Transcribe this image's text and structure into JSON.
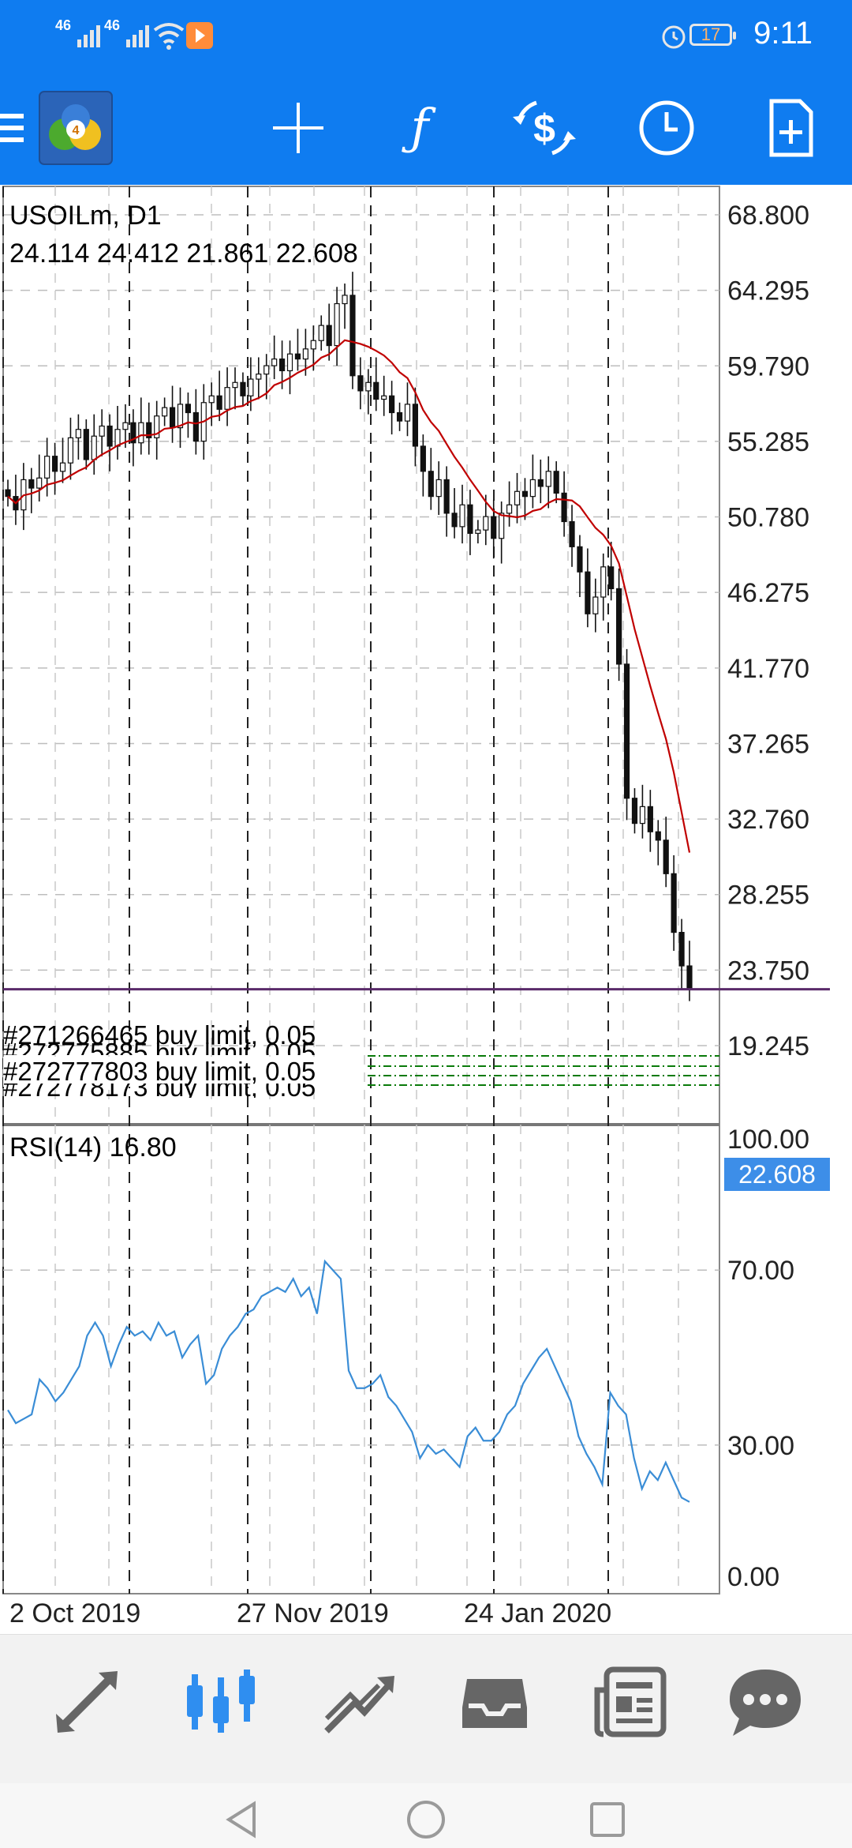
{
  "status_bar": {
    "signal1": "46",
    "signal2": "46",
    "battery": "17",
    "time": "9:11"
  },
  "toolbar": {
    "icons": [
      "menu-icon",
      "app-logo",
      "crosshair-icon",
      "function-icon",
      "trade-icon",
      "clock-icon",
      "new-order-icon"
    ]
  },
  "chart": {
    "symbol_label": "USOILm, D1",
    "ohlc_label": "24.114 24.412 21.861 22.608",
    "current_price": "22.608",
    "price_axis": [
      "68.800",
      "64.295",
      "59.790",
      "55.285",
      "50.780",
      "46.275",
      "41.770",
      "37.265",
      "32.760",
      "28.255",
      "23.750",
      "19.245"
    ],
    "date_axis": [
      "2 Oct 2019",
      "27 Nov 2019",
      "24 Jan 2020"
    ],
    "orders": [
      "#271266465 buy limit, 0.05",
      "#272775885 buy limit, 0.05",
      "#272777803 buy limit, 0.05",
      "#272778173 buy limit, 0.05"
    ],
    "rsi_label": "RSI(14) 16.80",
    "rsi_axis": [
      "100.00",
      "70.00",
      "30.00",
      "0.00"
    ],
    "colors": {
      "ma_line": "#c00000",
      "rsi_line": "#3a8dd6",
      "price_line": "#5a2a6a",
      "price_tag": "#3d8ee8",
      "order_lines": "#0a7a0a"
    }
  },
  "chart_data": {
    "type": "candlestick",
    "symbol": "USOILm",
    "timeframe": "D1",
    "ylim": [
      17.0,
      69.0
    ],
    "x_labels": [
      "2 Oct 2019",
      "27 Nov 2019",
      "24 Jan 2020"
    ],
    "close_series": [
      52.0,
      51.2,
      53.0,
      52.5,
      53.1,
      54.4,
      53.5,
      54.0,
      55.5,
      56.0,
      54.2,
      55.6,
      56.2,
      55.0,
      56.0,
      56.4,
      55.2,
      56.4,
      55.5,
      56.8,
      57.3,
      56.1,
      57.5,
      57.0,
      55.3,
      57.6,
      58.0,
      57.2,
      58.5,
      58.8,
      58.0,
      59.0,
      59.3,
      59.8,
      60.2,
      59.5,
      60.5,
      60.2,
      60.8,
      61.3,
      62.2,
      61.0,
      63.5,
      64.0,
      59.2,
      58.3,
      58.8,
      57.8,
      58.0,
      57.0,
      56.5,
      57.5,
      55.0,
      53.5,
      52.0,
      53.0,
      51.0,
      50.2,
      51.5,
      49.8,
      50.0,
      50.8,
      49.5,
      51.0,
      51.5,
      52.3,
      52.0,
      53.0,
      52.6,
      53.5,
      52.2,
      50.5,
      49.0,
      47.5,
      45.0,
      46.0,
      47.8,
      46.5,
      42.0,
      34.0,
      32.5,
      33.5,
      32.0,
      31.5,
      29.5,
      26.0,
      24.0,
      22.6
    ],
    "ma_series_note": "",
    "current_price": 22.608,
    "rsi": {
      "name": "RSI(14)",
      "value": 16.8,
      "ylim": [
        0,
        100
      ],
      "series": [
        38,
        35,
        36,
        37,
        45,
        43,
        40,
        42,
        45,
        48,
        55,
        58,
        55,
        48,
        53,
        57,
        55,
        56,
        54,
        58,
        55,
        56,
        50,
        53,
        55,
        44,
        46,
        52,
        55,
        57,
        60,
        61,
        64,
        65,
        66,
        65,
        68,
        64,
        66,
        60,
        72,
        70,
        68,
        47,
        43,
        43,
        44,
        46,
        41,
        39,
        36,
        33,
        27,
        30,
        28,
        29,
        27,
        25,
        32,
        34,
        31,
        31,
        33,
        37,
        39,
        44,
        47,
        50,
        52,
        48,
        44,
        40,
        32,
        28,
        25,
        21,
        42,
        39,
        37,
        27,
        20,
        24,
        22,
        26,
        22,
        18,
        17
      ],
      "levels": [
        70,
        30
      ]
    }
  }
}
